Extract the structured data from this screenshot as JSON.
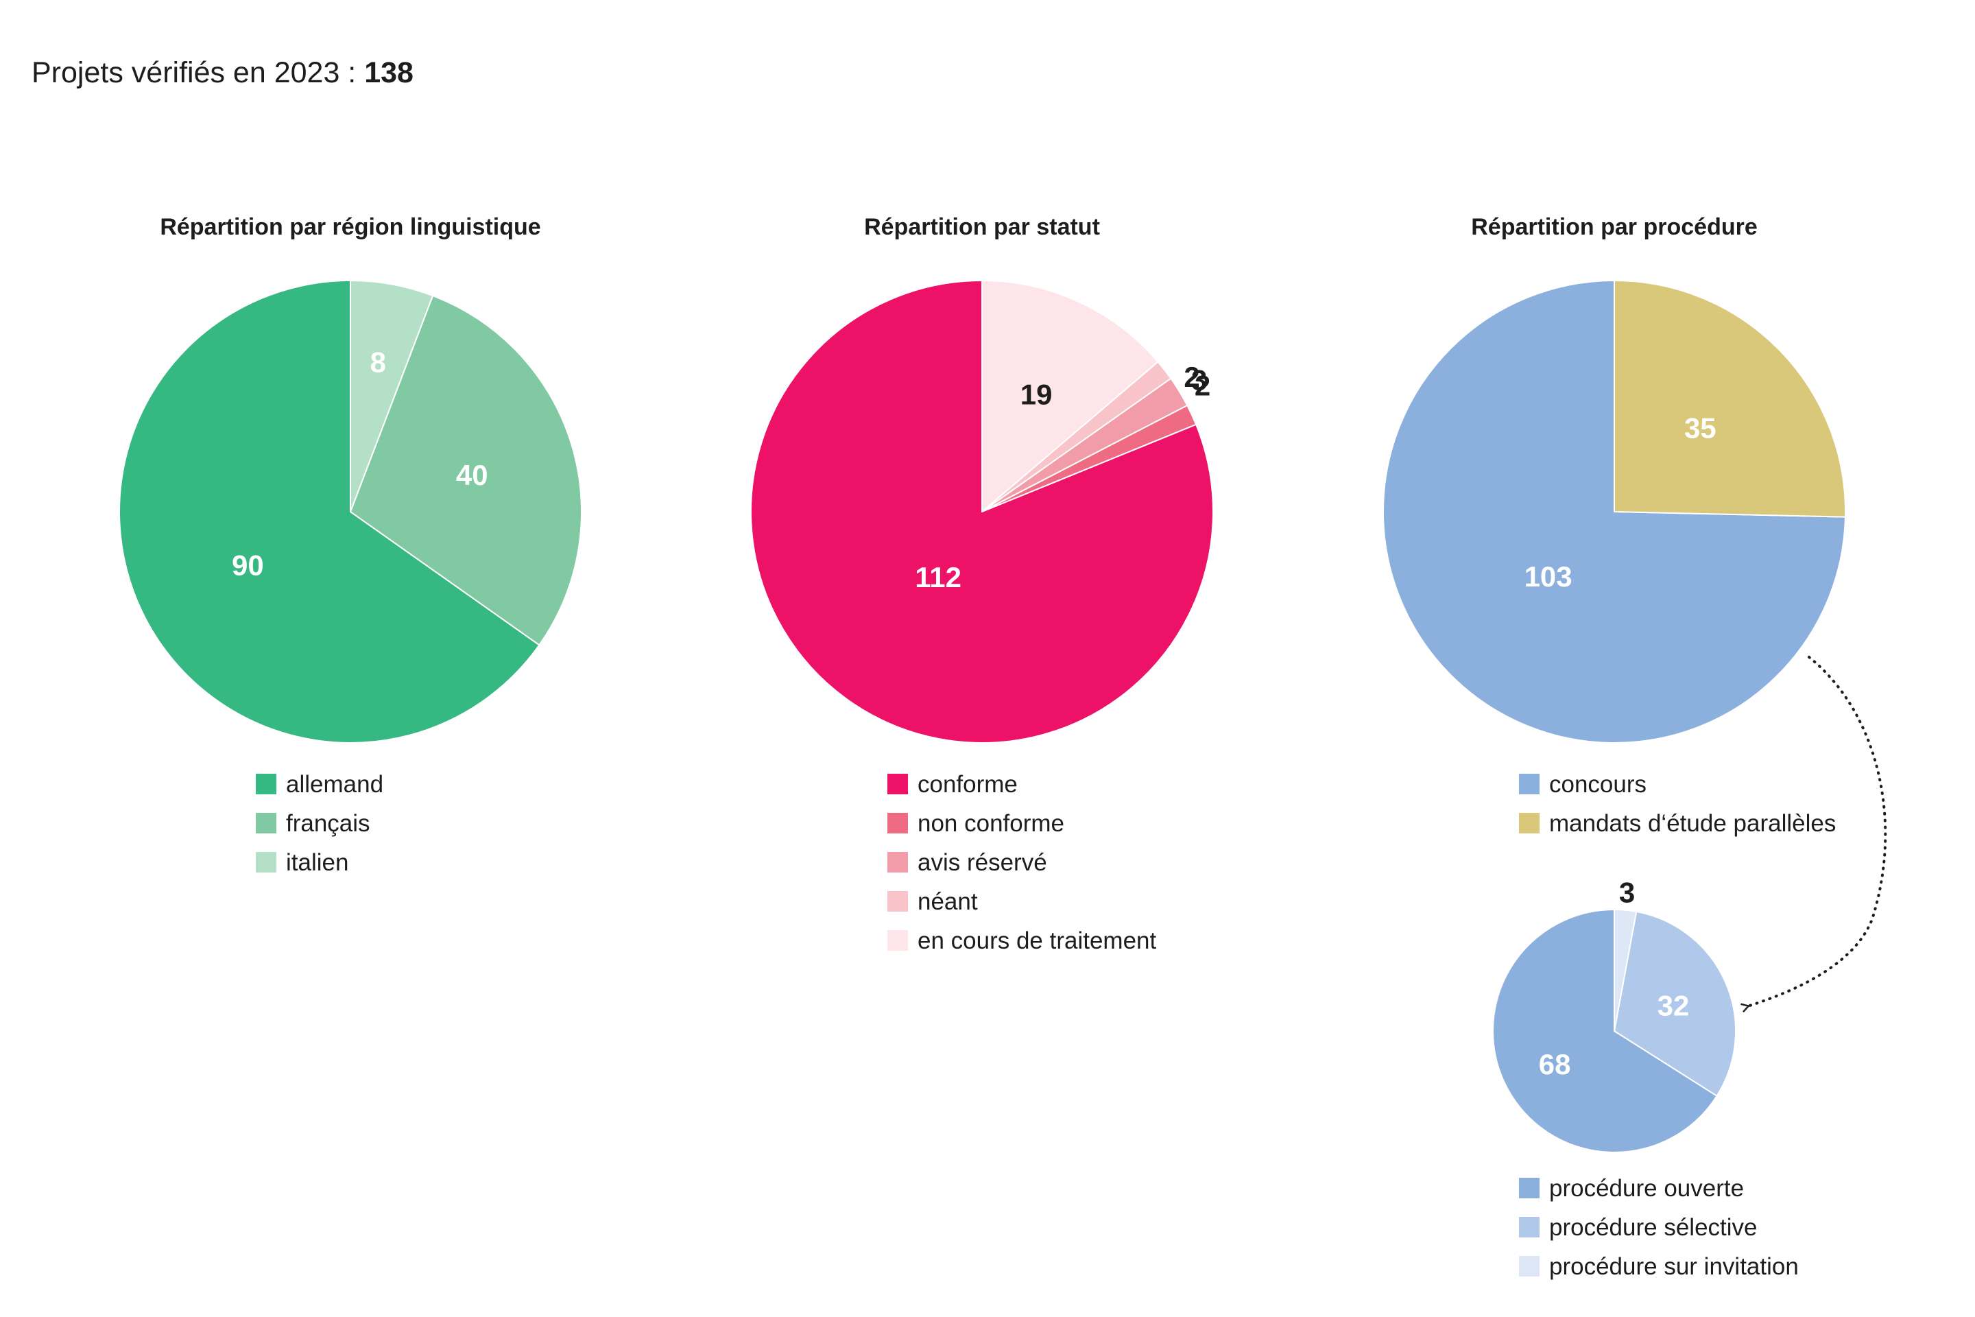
{
  "header": {
    "label": "Projets vérifiés en 2023 :",
    "total": "138"
  },
  "chart_data": [
    {
      "type": "pie",
      "title": "Répartition par région linguistique",
      "slices": [
        {
          "label": "allemand",
          "value": 90,
          "color": "#35b882",
          "text_color": "#ffffff"
        },
        {
          "label": "français",
          "value": 40,
          "color": "#80c9a2",
          "text_color": "#ffffff"
        },
        {
          "label": "italien",
          "value": 8,
          "color": "#b5e0c8",
          "text_color": "#ffffff"
        }
      ]
    },
    {
      "type": "pie",
      "title": "Répartition par statut",
      "slices": [
        {
          "label": "conforme",
          "value": 112,
          "color": "#ed1168",
          "text_color": "#ffffff"
        },
        {
          "label": "non conforme",
          "value": 2,
          "color": "#ef6a83",
          "text_color": "#1d1d1b"
        },
        {
          "label": "avis réservé",
          "value": 3,
          "color": "#f29ba9",
          "text_color": "#1d1d1b"
        },
        {
          "label": "néant",
          "value": 2,
          "color": "#f8c3c9",
          "text_color": "#1d1d1b"
        },
        {
          "label": "en cours de traitement",
          "value": 19,
          "color": "#fde5e9",
          "text_color": "#1d1d1b"
        }
      ]
    },
    {
      "type": "pie",
      "title": "Répartition par procédure",
      "slices": [
        {
          "label": "concours",
          "value": 103,
          "color": "#8cb0de",
          "text_color": "#ffffff"
        },
        {
          "label": "mandats d‘étude parallèles",
          "value": 35,
          "color": "#d9c87a",
          "text_color": "#ffffff"
        }
      ]
    },
    {
      "type": "pie",
      "title": "",
      "slices": [
        {
          "label": "procédure ouverte",
          "value": 68,
          "color": "#8cb0de",
          "text_color": "#ffffff"
        },
        {
          "label": "procédure sélective",
          "value": 32,
          "color": "#b0c8ea",
          "text_color": "#ffffff"
        },
        {
          "label": "procédure sur invitation",
          "value": 3,
          "color": "#dde7f5",
          "text_color": "#1d1d1b"
        }
      ]
    }
  ]
}
